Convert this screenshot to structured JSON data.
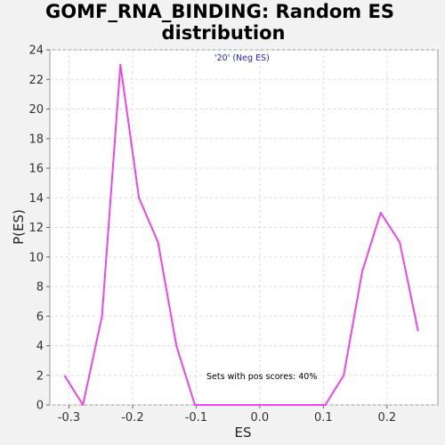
{
  "chart_data": {
    "type": "line",
    "title_line1": "GOMF_RNA_BINDING: Random ES",
    "title_line2": "distribution",
    "xlabel": "ES",
    "ylabel": "P(ES)",
    "xlim": [
      -0.33,
      0.28
    ],
    "ylim": [
      0,
      24
    ],
    "xticks": [
      -0.3,
      -0.2,
      -0.1,
      0.0,
      0.1,
      0.2
    ],
    "xtick_labels": [
      "-0.3",
      "-0.2",
      "-0.1",
      "0.0",
      "0.1",
      "0.2"
    ],
    "yticks": [
      0,
      2,
      4,
      6,
      8,
      10,
      12,
      14,
      16,
      18,
      20,
      22,
      24
    ],
    "ytick_labels": [
      "0",
      "2",
      "4",
      "6",
      "8",
      "10",
      "12",
      "14",
      "16",
      "18",
      "20",
      "22",
      "24"
    ],
    "grid": true,
    "series": [
      {
        "color": "#ee44ee",
        "x": [
          -0.307,
          -0.278,
          -0.248,
          -0.219,
          -0.19,
          -0.16,
          -0.131,
          -0.102,
          -0.073,
          -0.043,
          -0.014,
          0.015,
          0.044,
          0.074,
          0.103,
          0.132,
          0.161,
          0.19,
          0.22,
          0.249
        ],
        "y": [
          2,
          0,
          6,
          23,
          14,
          11,
          4,
          0,
          0,
          0,
          0,
          0,
          0,
          0,
          0,
          2,
          9,
          13,
          11,
          5
        ]
      }
    ],
    "annotations": {
      "neg_es_label": "'20' (Neg ES)",
      "neg_es_color": "#2222cc",
      "neg_es_quote_color": "#dd2222",
      "pos_scores_text": "Sets with pos scores: 40%"
    }
  }
}
